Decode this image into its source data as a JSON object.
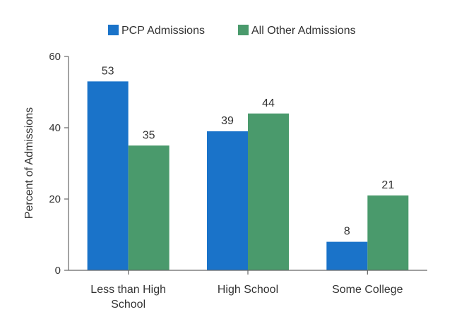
{
  "chart_data": {
    "type": "bar",
    "categories": [
      "Less than High School",
      "High School",
      "Some College"
    ],
    "category_label_lines": [
      [
        "Less than High",
        "School"
      ],
      [
        "High School"
      ],
      [
        "Some College"
      ]
    ],
    "series": [
      {
        "name": "PCP Admissions",
        "values": [
          53,
          39,
          8
        ],
        "color": "#1a73c9"
      },
      {
        "name": "All Other Admissions",
        "values": [
          35,
          44,
          21
        ],
        "color": "#4a9a6c"
      }
    ],
    "ylabel": "Percent of Admissions",
    "xlabel": "",
    "ylim": [
      0,
      60
    ],
    "yticks": [
      0,
      20,
      40,
      60
    ],
    "grid": false,
    "legend_position": "top-center"
  }
}
